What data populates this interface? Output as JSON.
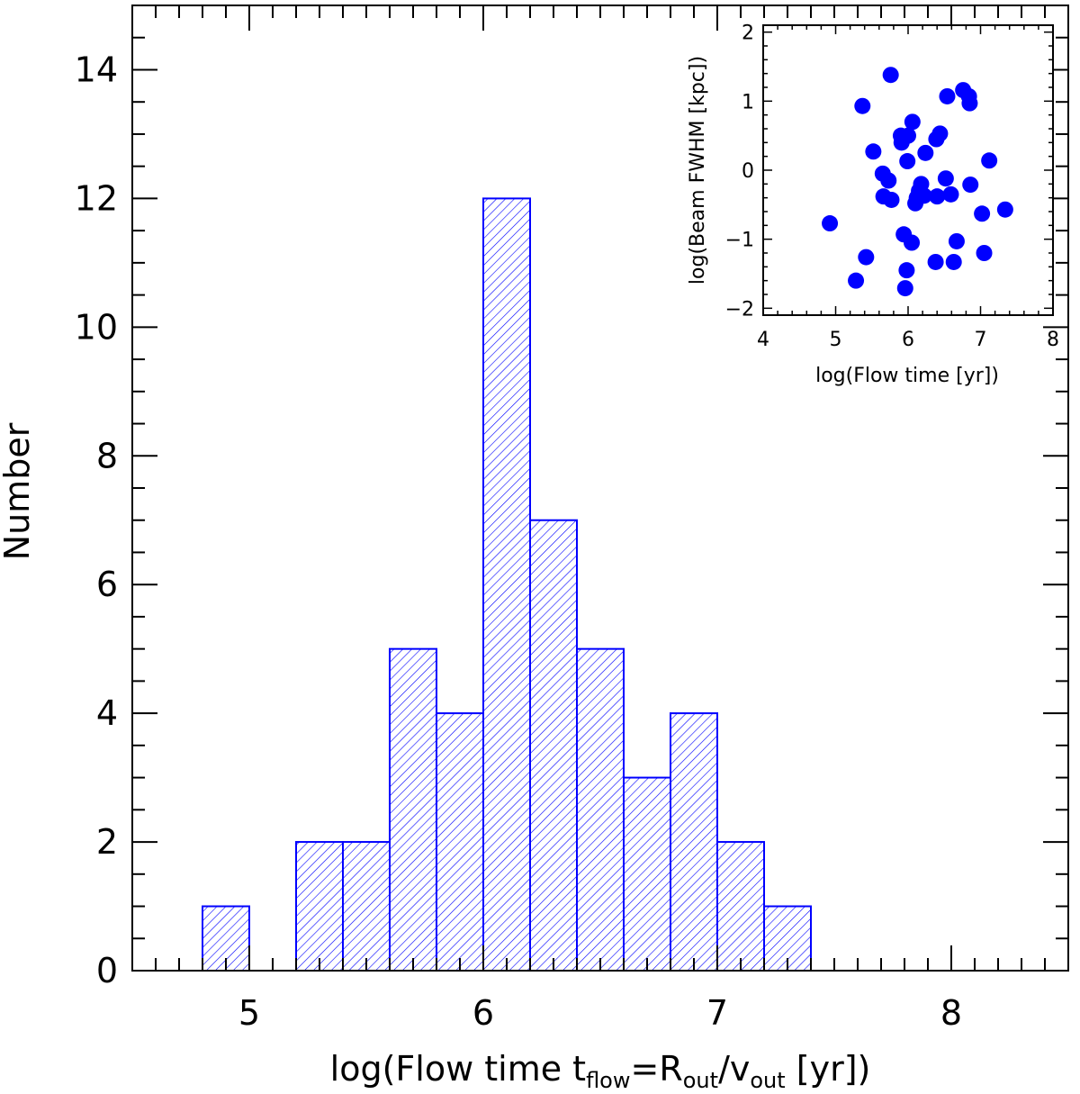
{
  "chart_data": [
    {
      "type": "bar",
      "subtype": "histogram",
      "bin_edges": [
        4.8,
        5.0,
        5.2,
        5.4,
        5.6,
        5.8,
        6.0,
        6.2,
        6.4,
        6.6,
        6.8,
        7.0,
        7.2,
        7.4
      ],
      "values": [
        1,
        0,
        2,
        2,
        5,
        4,
        12,
        7,
        5,
        3,
        4,
        2,
        1
      ],
      "xlabel_prefix": "log(Flow time t",
      "xlabel_sub1": "flow",
      "xlabel_mid": "=R",
      "xlabel_sub2": "out",
      "xlabel_mid2": "/v",
      "xlabel_sub3": "out",
      "xlabel_suffix": " [yr])",
      "ylabel": "Number",
      "xlim": [
        4.5,
        8.5
      ],
      "ylim": [
        0,
        15
      ],
      "xticks": [
        5,
        6,
        7,
        8
      ],
      "yticks": [
        0,
        2,
        4,
        6,
        8,
        10,
        12,
        14
      ],
      "bar_color": "#0000ff",
      "fill": "diagonal-hatch"
    },
    {
      "type": "scatter",
      "xlabel": "log(Flow time [yr])",
      "ylabel": "log(Beam FWHM [kpc])",
      "xlim": [
        4,
        8
      ],
      "ylim": [
        -2.1,
        2.1
      ],
      "xticks": [
        4,
        5,
        6,
        7,
        8
      ],
      "yticks": [
        -2,
        -1,
        0,
        1,
        2
      ],
      "marker_color": "#0000ff",
      "points": [
        {
          "x": 4.92,
          "y": -0.77
        },
        {
          "x": 5.28,
          "y": -1.6
        },
        {
          "x": 5.37,
          "y": 0.93
        },
        {
          "x": 5.42,
          "y": -1.26
        },
        {
          "x": 5.52,
          "y": 0.27
        },
        {
          "x": 5.65,
          "y": -0.05
        },
        {
          "x": 5.66,
          "y": -0.38
        },
        {
          "x": 5.73,
          "y": -0.15
        },
        {
          "x": 5.76,
          "y": 1.38
        },
        {
          "x": 5.77,
          "y": -0.43
        },
        {
          "x": 5.9,
          "y": 0.5
        },
        {
          "x": 5.91,
          "y": 0.4
        },
        {
          "x": 5.94,
          "y": -0.93
        },
        {
          "x": 5.96,
          "y": -1.71
        },
        {
          "x": 5.98,
          "y": -1.45
        },
        {
          "x": 5.99,
          "y": 0.13
        },
        {
          "x": 6.0,
          "y": 0.5
        },
        {
          "x": 6.05,
          "y": -1.05
        },
        {
          "x": 6.06,
          "y": 0.7
        },
        {
          "x": 6.1,
          "y": -0.48
        },
        {
          "x": 6.12,
          "y": -0.4
        },
        {
          "x": 6.15,
          "y": -0.3
        },
        {
          "x": 6.18,
          "y": -0.2
        },
        {
          "x": 6.22,
          "y": -0.37
        },
        {
          "x": 6.24,
          "y": 0.25
        },
        {
          "x": 6.38,
          "y": -1.33
        },
        {
          "x": 6.39,
          "y": 0.45
        },
        {
          "x": 6.4,
          "y": -0.38
        },
        {
          "x": 6.44,
          "y": 0.53
        },
        {
          "x": 6.52,
          "y": -0.12
        },
        {
          "x": 6.54,
          "y": 1.07
        },
        {
          "x": 6.59,
          "y": -0.35
        },
        {
          "x": 6.63,
          "y": -1.33
        },
        {
          "x": 6.67,
          "y": -1.03
        },
        {
          "x": 6.76,
          "y": 1.16
        },
        {
          "x": 6.84,
          "y": 1.07
        },
        {
          "x": 6.85,
          "y": 0.97
        },
        {
          "x": 6.86,
          "y": -0.21
        },
        {
          "x": 7.02,
          "y": -0.63
        },
        {
          "x": 7.05,
          "y": -1.2
        },
        {
          "x": 7.12,
          "y": 0.14
        },
        {
          "x": 7.34,
          "y": -0.57
        }
      ]
    }
  ]
}
